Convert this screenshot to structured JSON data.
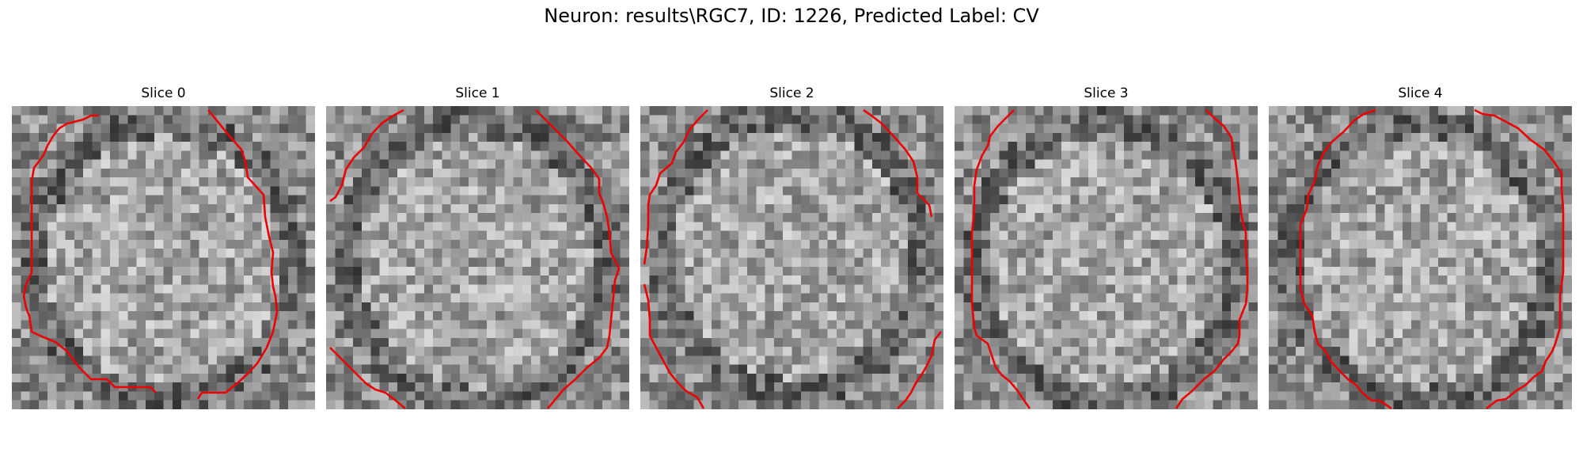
{
  "figure": {
    "title": "Neuron: results\\RGC7, ID: 1226, Predicted Label: CV"
  },
  "panels": [
    {
      "title": "Slice 0"
    },
    {
      "title": "Slice 1"
    },
    {
      "title": "Slice 2"
    },
    {
      "title": "Slice 3"
    },
    {
      "title": "Slice 4"
    }
  ],
  "colors": {
    "contour": "#ee0000",
    "colormap": "gray"
  }
}
